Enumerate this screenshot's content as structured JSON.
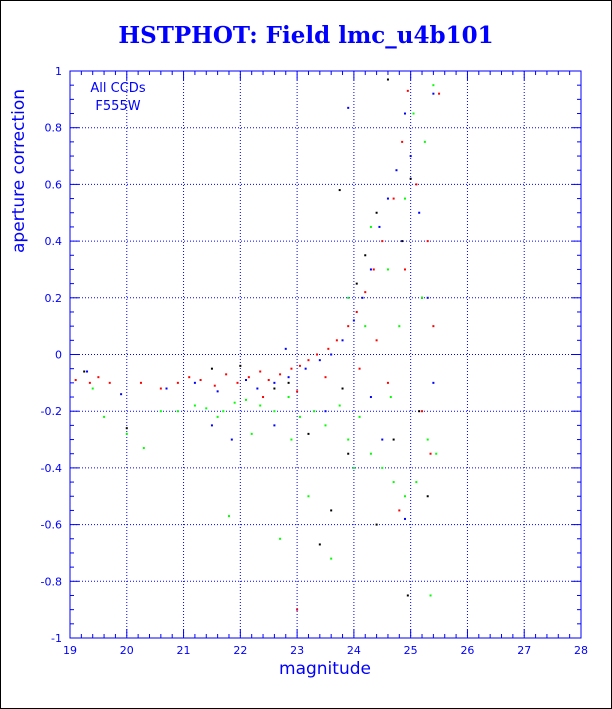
{
  "chart_data": {
    "type": "scatter",
    "title": "HSTPHOT: Field lmc_u4b101",
    "xlabel": "magnitude",
    "ylabel": "aperture correction",
    "xlim": [
      19,
      28
    ],
    "ylim": [
      -1,
      1
    ],
    "xticks": [
      "19",
      "20",
      "21",
      "22",
      "23",
      "24",
      "25",
      "26",
      "27",
      "28"
    ],
    "yticks": [
      "-1",
      "-0.8",
      "-0.6",
      "-0.4",
      "-0.2",
      "0",
      "0.2",
      "0.4",
      "0.6",
      "0.8",
      "1"
    ],
    "grid": true,
    "annotation": [
      "All CCDs",
      "F555W"
    ],
    "colors": {
      "axis": "#0000ff",
      "grid": "#0000ff",
      "title": "#0000ff"
    },
    "series": [
      {
        "color": "#ff0000",
        "points": [
          [
            19.1,
            -0.09
          ],
          [
            19.35,
            -0.1
          ],
          [
            19.5,
            -0.08
          ],
          [
            19.7,
            -0.1
          ],
          [
            20.25,
            -0.1
          ],
          [
            20.6,
            -0.12
          ],
          [
            20.9,
            -0.1
          ],
          [
            21.1,
            -0.08
          ],
          [
            21.3,
            -0.09
          ],
          [
            21.55,
            -0.11
          ],
          [
            21.75,
            -0.07
          ],
          [
            21.95,
            -0.1
          ],
          [
            22.15,
            -0.08
          ],
          [
            22.35,
            -0.06
          ],
          [
            22.5,
            -0.09
          ],
          [
            22.7,
            -0.07
          ],
          [
            22.9,
            -0.05
          ],
          [
            23.05,
            -0.04
          ],
          [
            23.2,
            -0.02
          ],
          [
            23.35,
            0.0
          ],
          [
            23.55,
            0.02
          ],
          [
            23.7,
            0.05
          ],
          [
            23.9,
            0.1
          ],
          [
            24.05,
            0.15
          ],
          [
            24.2,
            0.22
          ],
          [
            24.35,
            0.3
          ],
          [
            24.5,
            0.4
          ],
          [
            24.7,
            0.55
          ],
          [
            24.85,
            0.75
          ],
          [
            24.95,
            0.93
          ],
          [
            25.1,
            0.6
          ],
          [
            25.3,
            0.4
          ],
          [
            25.5,
            0.92
          ],
          [
            22.4,
            -0.15
          ],
          [
            23.0,
            -0.13
          ],
          [
            23.5,
            -0.08
          ],
          [
            24.1,
            -0.05
          ],
          [
            24.6,
            -0.1
          ],
          [
            25.2,
            -0.2
          ],
          [
            25.35,
            -0.35
          ],
          [
            24.8,
            -0.55
          ],
          [
            23.0,
            -0.9
          ],
          [
            24.4,
            0.05
          ],
          [
            24.9,
            0.3
          ],
          [
            25.4,
            0.1
          ]
        ]
      },
      {
        "color": "#0000ff",
        "points": [
          [
            19.3,
            -0.06
          ],
          [
            19.9,
            -0.14
          ],
          [
            20.7,
            -0.12
          ],
          [
            21.2,
            -0.1
          ],
          [
            21.6,
            -0.13
          ],
          [
            21.85,
            -0.3
          ],
          [
            22.1,
            -0.09
          ],
          [
            22.3,
            -0.12
          ],
          [
            22.6,
            -0.1
          ],
          [
            22.85,
            -0.08
          ],
          [
            23.15,
            -0.05
          ],
          [
            23.4,
            -0.02
          ],
          [
            23.6,
            0.0
          ],
          [
            23.8,
            0.05
          ],
          [
            24.0,
            0.12
          ],
          [
            24.15,
            0.2
          ],
          [
            24.3,
            0.3
          ],
          [
            24.45,
            0.45
          ],
          [
            24.6,
            0.55
          ],
          [
            24.75,
            0.65
          ],
          [
            24.9,
            0.85
          ],
          [
            25.0,
            0.7
          ],
          [
            25.15,
            0.5
          ],
          [
            25.3,
            0.2
          ],
          [
            25.4,
            -0.1
          ],
          [
            24.5,
            -0.3
          ],
          [
            24.9,
            -0.58
          ],
          [
            23.9,
            0.87
          ],
          [
            24.3,
            -0.15
          ],
          [
            22.6,
            -0.25
          ],
          [
            23.5,
            -0.2
          ],
          [
            21.5,
            -0.25
          ],
          [
            22.8,
            0.02
          ],
          [
            25.4,
            0.92
          ]
        ]
      },
      {
        "color": "#000000",
        "points": [
          [
            19.25,
            -0.06
          ],
          [
            20.0,
            -0.26
          ],
          [
            21.5,
            -0.05
          ],
          [
            22.0,
            -0.04
          ],
          [
            22.6,
            -0.12
          ],
          [
            23.2,
            -0.28
          ],
          [
            23.6,
            -0.55
          ],
          [
            23.9,
            -0.35
          ],
          [
            24.2,
            0.35
          ],
          [
            24.4,
            0.5
          ],
          [
            24.6,
            0.97
          ],
          [
            24.85,
            0.4
          ],
          [
            25.0,
            0.62
          ],
          [
            25.2,
            0.2
          ],
          [
            25.3,
            -0.5
          ],
          [
            24.7,
            -0.3
          ],
          [
            23.8,
            -0.12
          ],
          [
            24.05,
            0.25
          ],
          [
            24.95,
            -0.85
          ],
          [
            23.4,
            -0.67
          ],
          [
            22.85,
            -0.1
          ],
          [
            23.75,
            0.58
          ],
          [
            24.4,
            -0.6
          ],
          [
            25.15,
            -0.2
          ]
        ]
      },
      {
        "color": "#00ff00",
        "points": [
          [
            19.4,
            -0.12
          ],
          [
            19.6,
            -0.22
          ],
          [
            20.0,
            -0.28
          ],
          [
            20.3,
            -0.33
          ],
          [
            20.6,
            -0.2
          ],
          [
            20.9,
            -0.2
          ],
          [
            21.2,
            -0.18
          ],
          [
            21.4,
            -0.19
          ],
          [
            21.7,
            -0.2
          ],
          [
            21.9,
            -0.17
          ],
          [
            22.1,
            -0.16
          ],
          [
            22.35,
            -0.18
          ],
          [
            22.6,
            -0.2
          ],
          [
            22.85,
            -0.15
          ],
          [
            23.05,
            -0.22
          ],
          [
            23.3,
            -0.2
          ],
          [
            23.5,
            -0.25
          ],
          [
            23.75,
            -0.18
          ],
          [
            23.9,
            -0.3
          ],
          [
            24.1,
            -0.22
          ],
          [
            24.3,
            -0.35
          ],
          [
            24.5,
            -0.4
          ],
          [
            24.7,
            -0.45
          ],
          [
            24.9,
            -0.5
          ],
          [
            25.1,
            -0.45
          ],
          [
            25.3,
            -0.3
          ],
          [
            25.45,
            -0.35
          ],
          [
            24.2,
            0.1
          ],
          [
            24.6,
            0.3
          ],
          [
            24.9,
            0.55
          ],
          [
            25.05,
            0.85
          ],
          [
            25.25,
            0.75
          ],
          [
            25.4,
            0.95
          ],
          [
            23.2,
            -0.5
          ],
          [
            22.7,
            -0.65
          ],
          [
            21.8,
            -0.57
          ],
          [
            23.6,
            -0.72
          ],
          [
            24.0,
            -0.4
          ],
          [
            22.9,
            -0.3
          ],
          [
            24.8,
            0.1
          ],
          [
            25.2,
            0.2
          ],
          [
            23.9,
            0.2
          ],
          [
            24.3,
            0.45
          ],
          [
            24.65,
            -0.15
          ],
          [
            25.35,
            -0.85
          ],
          [
            21.6,
            -0.22
          ],
          [
            22.2,
            -0.28
          ]
        ]
      }
    ]
  }
}
